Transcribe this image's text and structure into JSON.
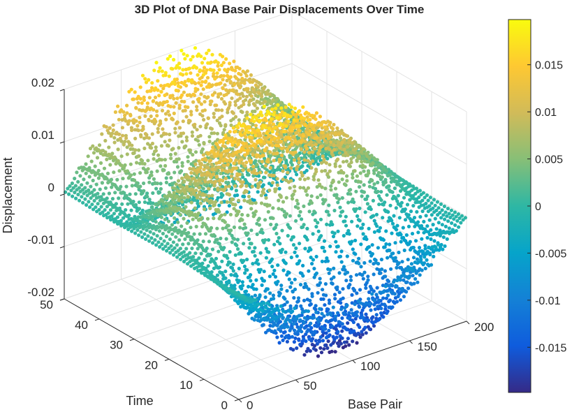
{
  "chart_data": {
    "type": "scatter3d",
    "title": "3D Plot of DNA Base Pair Displacements Over Time",
    "xlabel": "Base Pair",
    "ylabel": "Time",
    "zlabel": "Displacement",
    "xlim": [
      0,
      200
    ],
    "ylim": [
      0,
      50
    ],
    "zlim": [
      -0.02,
      0.02
    ],
    "xticks": [
      "0",
      "50",
      "100",
      "150",
      "200"
    ],
    "yticks": [
      "0",
      "10",
      "20",
      "30",
      "40",
      "50"
    ],
    "zticks": [
      "-0.02",
      "-0.01",
      "0",
      "0.01",
      "0.02"
    ],
    "grid": true,
    "colormap": "parula",
    "colorbar": {
      "limits": [
        -0.0198,
        0.0198
      ],
      "ticks": [
        "-0.015",
        "-0.01",
        "-0.005",
        "0",
        "0.005",
        "0.01",
        "0.015"
      ]
    },
    "grid_base_pair": [
      0,
      20,
      40,
      60,
      80,
      100,
      120,
      140,
      160,
      180,
      200
    ],
    "grid_time": [
      0,
      5,
      10,
      15,
      20,
      25,
      30,
      35,
      40,
      45,
      50
    ],
    "displacement_grid": [
      [
        0,
        -0.0037,
        -0.0071,
        -0.0097,
        -0.0114,
        -0.012,
        -0.0114,
        -0.0097,
        -0.0071,
        -0.0037,
        0
      ],
      [
        0,
        -0.0056,
        -0.0106,
        -0.0146,
        -0.0171,
        -0.018,
        -0.0171,
        -0.0146,
        -0.0106,
        -0.0056,
        0
      ],
      [
        0,
        -0.0031,
        -0.0059,
        -0.0081,
        -0.0095,
        -0.01,
        -0.0095,
        -0.0081,
        -0.0059,
        -0.0031,
        0
      ],
      [
        0,
        0.0012,
        0.0024,
        0.0032,
        0.0038,
        0.004,
        0.0038,
        0.0032,
        0.0024,
        0.0012,
        0
      ],
      [
        0,
        0.0043,
        0.0082,
        0.0113,
        0.0133,
        0.014,
        0.0133,
        0.0113,
        0.0082,
        0.0043,
        0
      ],
      [
        0,
        0.0049,
        0.0094,
        0.0129,
        0.0152,
        0.016,
        0.0152,
        0.0129,
        0.0094,
        0.0049,
        0
      ],
      [
        0,
        0.0031,
        0.0059,
        0.0081,
        0.0095,
        0.01,
        0.0095,
        0.0081,
        0.0059,
        0.0031,
        0
      ],
      [
        0,
        -0.0006,
        -0.0012,
        -0.0016,
        -0.0019,
        -0.002,
        -0.0019,
        -0.0016,
        -0.0012,
        -0.0006,
        0
      ],
      [
        0,
        0.0019,
        0.0035,
        0.0049,
        0.0057,
        0.006,
        0.0057,
        0.0049,
        0.0035,
        0.0019,
        0
      ],
      [
        0,
        0.0043,
        0.0082,
        0.0113,
        0.0133,
        0.014,
        0.0133,
        0.0113,
        0.0082,
        0.0043,
        0
      ],
      [
        0,
        0.0053,
        0.01,
        0.0138,
        0.0162,
        0.017,
        0.0162,
        0.0138,
        0.01,
        0.0053,
        0
      ]
    ]
  }
}
